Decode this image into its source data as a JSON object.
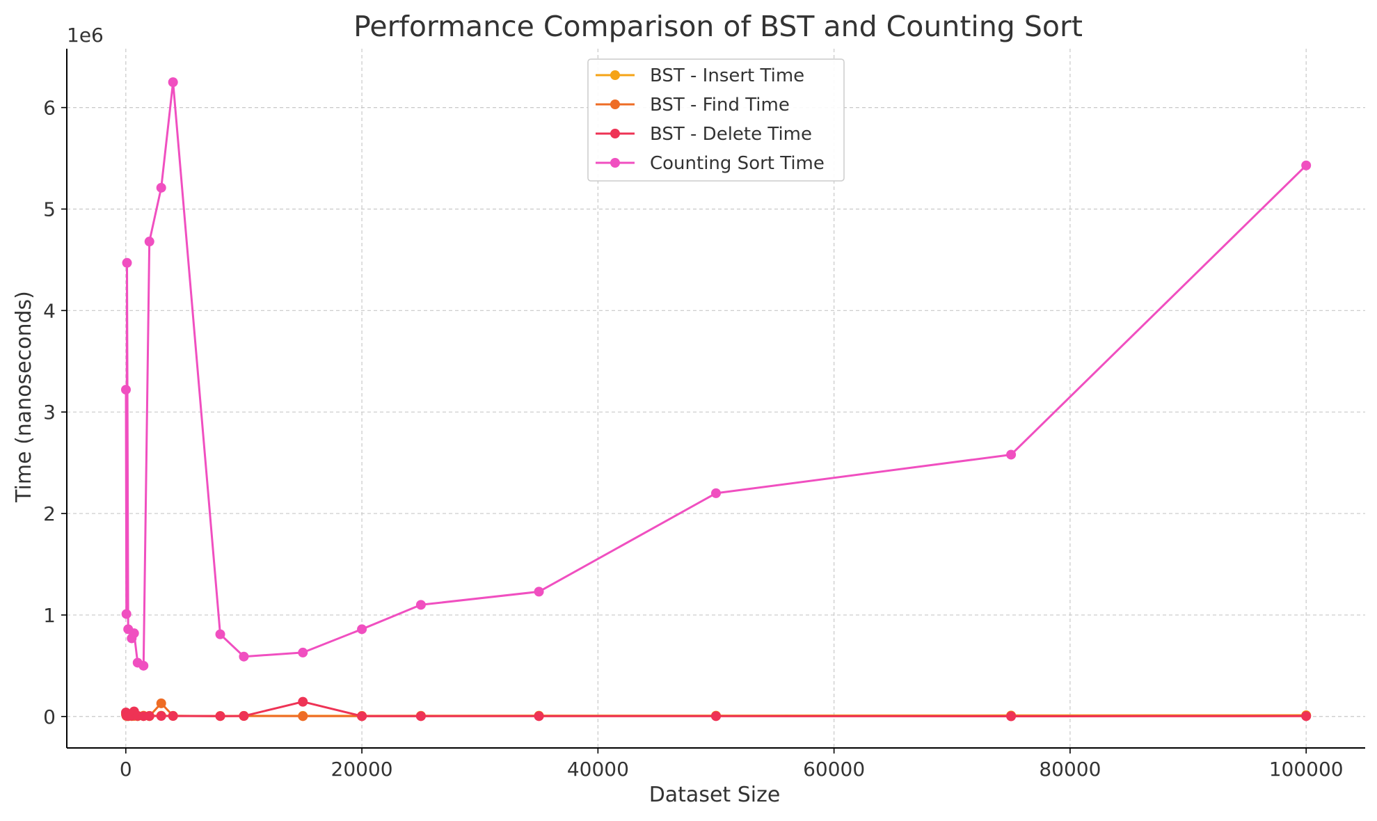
{
  "chart_data": {
    "type": "line",
    "title": "Performance Comparison of BST and Counting Sort",
    "xlabel": "Dataset Size",
    "ylabel": "Time (nanoseconds)",
    "y_offset_label": "1e6",
    "xlim": [
      -5000,
      105000
    ],
    "ylim": [
      -310000,
      6580000
    ],
    "x_ticks": [
      0,
      20000,
      40000,
      60000,
      80000,
      100000
    ],
    "y_ticks": [
      0,
      1000000,
      2000000,
      3000000,
      4000000,
      5000000,
      6000000
    ],
    "y_tick_labels": [
      "0",
      "1",
      "2",
      "3",
      "4",
      "5",
      "6"
    ],
    "grid": true,
    "legend_position": "top-center",
    "series": [
      {
        "name": "BST - Insert Time",
        "color": "#f5a316",
        "x": [
          10,
          50,
          100,
          200,
          500,
          700,
          1000,
          1500,
          2000,
          3000,
          4000,
          8000,
          10000,
          15000,
          20000,
          25000,
          35000,
          50000,
          75000,
          100000
        ],
        "y": [
          30000,
          10000,
          8000,
          6000,
          8000,
          10000,
          6000,
          8000,
          6000,
          8000,
          6000,
          5000,
          6000,
          6000,
          6000,
          7000,
          8000,
          8000,
          10000,
          12000
        ]
      },
      {
        "name": "BST - Find Time",
        "color": "#ee6c25",
        "x": [
          10,
          50,
          100,
          200,
          500,
          700,
          1000,
          1500,
          2000,
          3000,
          4000,
          8000,
          10000,
          15000,
          20000,
          25000,
          35000,
          50000,
          75000,
          100000
        ],
        "y": [
          20000,
          5000,
          4000,
          3000,
          4000,
          5000,
          3000,
          4000,
          3000,
          130000,
          6000,
          4000,
          5000,
          3000,
          3000,
          4000,
          5000,
          5000,
          6000,
          8000
        ]
      },
      {
        "name": "BST - Delete Time",
        "color": "#ee3355",
        "x": [
          10,
          50,
          100,
          200,
          500,
          700,
          1000,
          1500,
          2000,
          3000,
          4000,
          8000,
          10000,
          15000,
          20000,
          25000,
          35000,
          50000,
          75000,
          100000
        ],
        "y": [
          40000,
          10000,
          8000,
          5000,
          8000,
          50000,
          6000,
          4000,
          5000,
          5000,
          5000,
          4000,
          5000,
          145000,
          3000,
          3000,
          3000,
          3000,
          2000,
          3000
        ]
      },
      {
        "name": "Counting Sort Time",
        "color": "#f04fc0",
        "x": [
          10,
          50,
          100,
          200,
          500,
          700,
          1000,
          1500,
          2000,
          3000,
          4000,
          8000,
          10000,
          15000,
          20000,
          25000,
          35000,
          50000,
          75000,
          100000
        ],
        "y": [
          3220000,
          1010000,
          4470000,
          860000,
          770000,
          820000,
          530000,
          500000,
          4680000,
          5210000,
          6250000,
          810000,
          590000,
          630000,
          860000,
          1100000,
          1230000,
          2200000,
          2580000,
          5430000
        ]
      }
    ]
  }
}
